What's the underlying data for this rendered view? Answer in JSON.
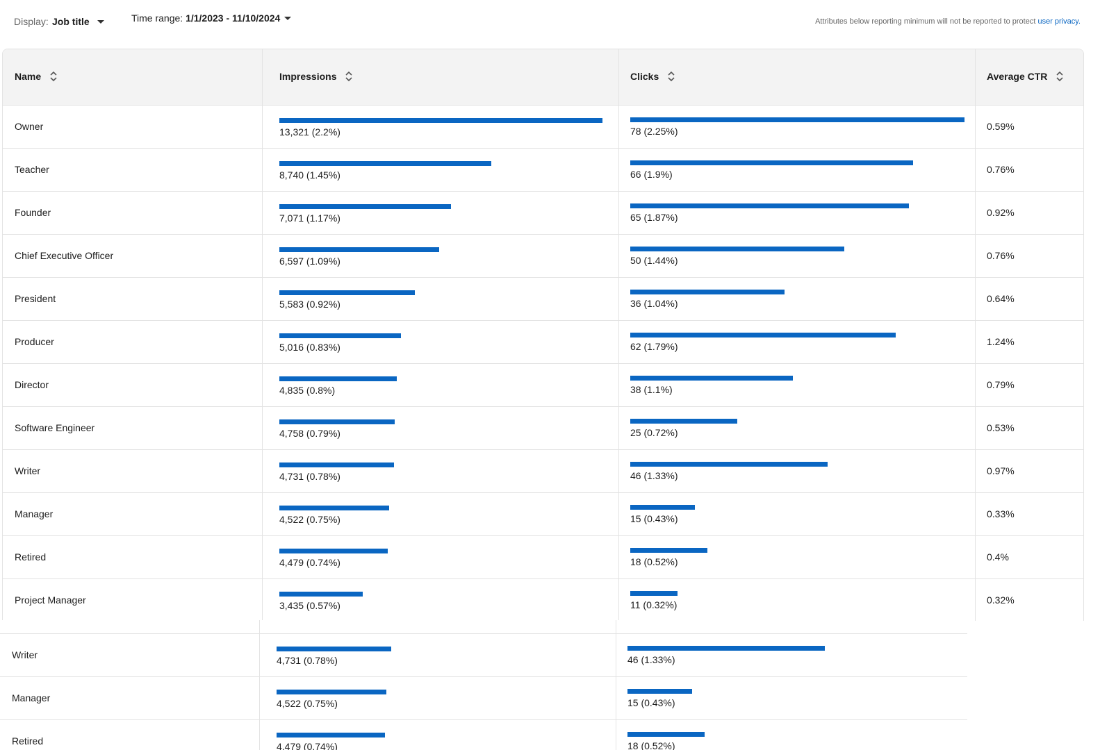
{
  "toolbar": {
    "display_label": "Display:",
    "display_value": "Job title",
    "time_range_label": "Time range:",
    "time_range_value": "1/1/2023 - 11/10/2024",
    "notice": "Attributes below reporting minimum will not be reported to protect",
    "notice_link": "user privacy."
  },
  "table": {
    "columns": [
      "Name",
      "Impressions",
      "Clicks",
      "Average CTR"
    ],
    "rows": [
      {
        "name": "Owner",
        "impressions": {
          "value": 13321,
          "label": "13,321 (2.2%)"
        },
        "clicks": {
          "value": 78,
          "label": "78 (2.25%)"
        },
        "ctr": "0.59%"
      },
      {
        "name": "Teacher",
        "impressions": {
          "value": 8740,
          "label": "8,740 (1.45%)"
        },
        "clicks": {
          "value": 66,
          "label": "66 (1.9%)"
        },
        "ctr": "0.76%"
      },
      {
        "name": "Founder",
        "impressions": {
          "value": 7071,
          "label": "7,071 (1.17%)"
        },
        "clicks": {
          "value": 65,
          "label": "65 (1.87%)"
        },
        "ctr": "0.92%"
      },
      {
        "name": "Chief Executive Officer",
        "impressions": {
          "value": 6597,
          "label": "6,597 (1.09%)"
        },
        "clicks": {
          "value": 50,
          "label": "50 (1.44%)"
        },
        "ctr": "0.76%"
      },
      {
        "name": "President",
        "impressions": {
          "value": 5583,
          "label": "5,583 (0.92%)"
        },
        "clicks": {
          "value": 36,
          "label": "36 (1.04%)"
        },
        "ctr": "0.64%"
      },
      {
        "name": "Producer",
        "impressions": {
          "value": 5016,
          "label": "5,016 (0.83%)"
        },
        "clicks": {
          "value": 62,
          "label": "62 (1.79%)"
        },
        "ctr": "1.24%"
      },
      {
        "name": "Director",
        "impressions": {
          "value": 4835,
          "label": "4,835 (0.8%)"
        },
        "clicks": {
          "value": 38,
          "label": "38 (1.1%)"
        },
        "ctr": "0.79%"
      },
      {
        "name": "Software Engineer",
        "impressions": {
          "value": 4758,
          "label": "4,758 (0.79%)"
        },
        "clicks": {
          "value": 25,
          "label": "25 (0.72%)"
        },
        "ctr": "0.53%"
      },
      {
        "name": "Writer",
        "impressions": {
          "value": 4731,
          "label": "4,731 (0.78%)"
        },
        "clicks": {
          "value": 46,
          "label": "46 (1.33%)"
        },
        "ctr": "0.97%"
      },
      {
        "name": "Manager",
        "impressions": {
          "value": 4522,
          "label": "4,522 (0.75%)"
        },
        "clicks": {
          "value": 15,
          "label": "15 (0.43%)"
        },
        "ctr": "0.33%"
      },
      {
        "name": "Retired",
        "impressions": {
          "value": 4479,
          "label": "4,479 (0.74%)"
        },
        "clicks": {
          "value": 18,
          "label": "18 (0.52%)"
        },
        "ctr": "0.4%"
      },
      {
        "name": "Project Manager",
        "impressions": {
          "value": 3435,
          "label": "3,435 (0.57%)"
        },
        "clicks": {
          "value": 11,
          "label": "11 (0.32%)"
        },
        "ctr": "0.32%"
      }
    ]
  },
  "overlay": {
    "rows": [
      {
        "name": "Writer",
        "impressions": {
          "value": 4731,
          "label": "4,731 (0.78%)"
        },
        "clicks": {
          "value": 46,
          "label": "46 (1.33%)"
        }
      },
      {
        "name": "Manager",
        "impressions": {
          "value": 4522,
          "label": "4,522 (0.75%)"
        },
        "clicks": {
          "value": 15,
          "label": "15 (0.43%)"
        }
      },
      {
        "name": "Retired",
        "impressions": {
          "value": 4479,
          "label": "4,479 (0.74%)"
        },
        "clicks": {
          "value": 18,
          "label": "18 (0.52%)"
        }
      }
    ]
  }
}
